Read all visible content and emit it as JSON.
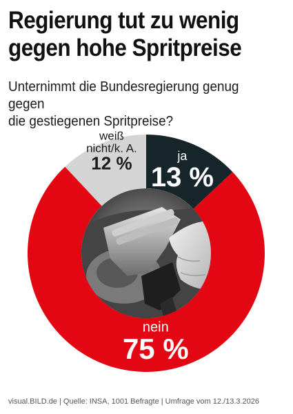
{
  "headline": {
    "line1": "Regierung tut zu wenig",
    "line2": "gegen hohe Spritpreise"
  },
  "question": {
    "line1": "Unternimmt die Bundesregierung genug gegen",
    "line2": "die gestiegenen Spritpreise?"
  },
  "footer": "visual.BILD.de | Quelle: INSA, 1001 Befragte | Umfrage vom 12./13.3.2026",
  "center_image": "fuel-nozzle-photo",
  "colors": {
    "nein": "#e30613",
    "ja": "#16252a",
    "weiss_nicht": "#d4d4d4",
    "headline": "#111111"
  },
  "chart_data": {
    "type": "pie",
    "title": "",
    "slices": [
      {
        "label": "ja",
        "value": 13,
        "display": "13 %",
        "color": "#16252a"
      },
      {
        "label": "nein",
        "value": 75,
        "display": "75 %",
        "color": "#e30613"
      },
      {
        "label_lines": [
          "weiß",
          "nicht/k. A."
        ],
        "value": 12,
        "display": "12 %",
        "color": "#d4d4d4"
      }
    ]
  }
}
